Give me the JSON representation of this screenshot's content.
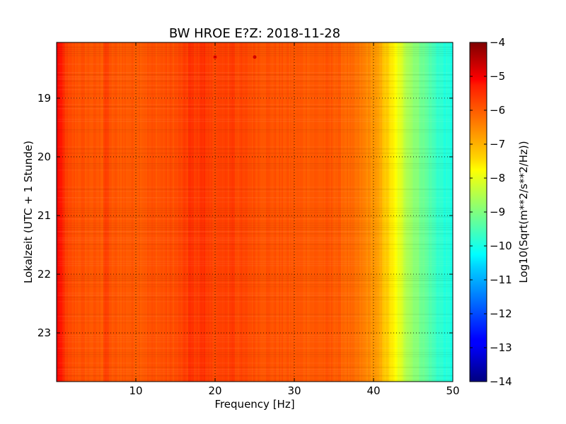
{
  "chart_data": {
    "type": "heatmap",
    "title": "BW HROE E?Z: 2018-11-28",
    "xlabel": "Frequency [Hz]",
    "ylabel": "Lokalzeit (UTC + 1 Stunde)",
    "xlim": [
      0,
      50
    ],
    "ylim": [
      18.05,
      23.83
    ],
    "y_inverted": true,
    "x_ticks": [
      10,
      20,
      30,
      40,
      50
    ],
    "y_ticks": [
      19,
      20,
      21,
      22,
      23
    ],
    "grid": true,
    "grid_style": "dotted",
    "colormap": "jet",
    "colorbar": {
      "label": "Log10(Sqrt(m**2/s**2/Hz))",
      "range": [
        -14,
        -4
      ],
      "ticks": [
        -4,
        -5,
        -6,
        -7,
        -8,
        -9,
        -10,
        -11,
        -12,
        -13,
        -14
      ]
    },
    "frequency_profile": {
      "freq_hz": [
        0,
        0.5,
        1.5,
        5,
        10,
        15,
        17,
        19,
        22,
        25,
        30,
        35,
        38,
        40,
        41,
        42,
        43,
        44,
        45,
        46,
        47,
        48,
        49,
        50
      ],
      "log_amplitude": [
        -5.1,
        -5.5,
        -6.0,
        -6.1,
        -6.1,
        -6.0,
        -5.8,
        -5.9,
        -5.9,
        -6.0,
        -6.1,
        -6.1,
        -6.4,
        -6.7,
        -7.0,
        -7.4,
        -7.9,
        -8.4,
        -8.8,
        -9.1,
        -9.4,
        -9.7,
        -9.9,
        -10.0
      ]
    },
    "spectral_lines": [
      {
        "freq_hz": 6.3,
        "log_amplitude": -5.9
      },
      {
        "freq_hz": 16.9,
        "log_amplitude": -5.7
      },
      {
        "freq_hz": 18.4,
        "log_amplitude": -5.7
      },
      {
        "freq_hz": 22.1,
        "log_amplitude": -5.8
      }
    ],
    "transients": [
      {
        "freq_hz": 20.0,
        "time": 18.3,
        "log_amplitude": -5.0
      },
      {
        "freq_hz": 25.0,
        "time": 18.3,
        "log_amplitude": -4.8
      }
    ]
  }
}
